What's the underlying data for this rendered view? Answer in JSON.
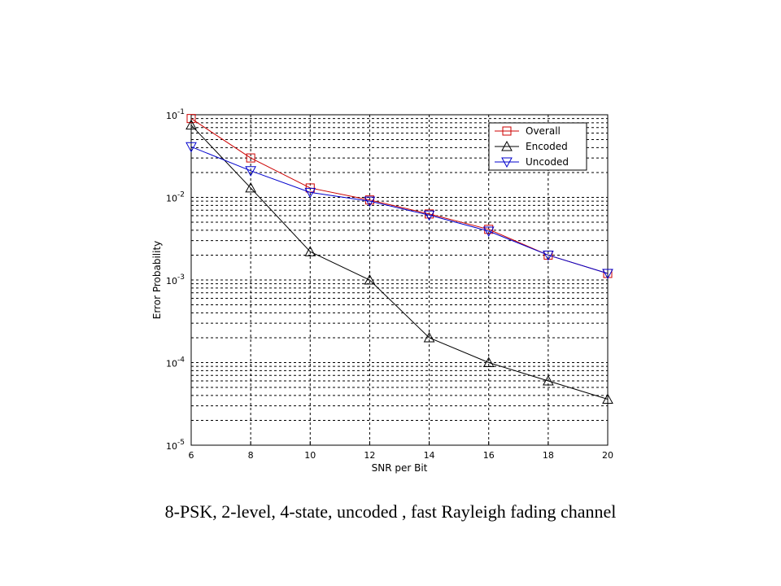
{
  "caption": "8-PSK, 2-level, 4-state, uncoded , fast Rayleigh fading channel",
  "chart_data": {
    "type": "line",
    "title": "",
    "xlabel": "SNR per Bit",
    "ylabel": "Error Probability",
    "x": [
      6,
      8,
      10,
      12,
      14,
      16,
      18,
      20
    ],
    "xlim": [
      6,
      20
    ],
    "xticks": [
      6,
      8,
      10,
      12,
      14,
      16,
      18,
      20
    ],
    "ylim": [
      1e-05,
      0.1
    ],
    "yscale": "log",
    "yticks": [
      {
        "value": 1e-05,
        "base": "10",
        "exp": "-5"
      },
      {
        "value": 0.0001,
        "base": "10",
        "exp": "-4"
      },
      {
        "value": 0.001,
        "base": "10",
        "exp": "-3"
      },
      {
        "value": 0.01,
        "base": "10",
        "exp": "-2"
      },
      {
        "value": 0.1,
        "base": "10",
        "exp": "-1"
      }
    ],
    "grid": true,
    "legend_position": "top-right",
    "series": [
      {
        "name": "Overall",
        "marker": "square",
        "color": "#cc0000",
        "values": [
          0.09,
          0.03,
          0.013,
          0.0093,
          0.0063,
          0.0041,
          0.002,
          0.0012
        ]
      },
      {
        "name": "Encoded",
        "marker": "triangle-up",
        "color": "#000000",
        "values": [
          0.075,
          0.013,
          0.0022,
          0.001,
          0.0002,
          0.0001,
          6e-05,
          3.6e-05
        ]
      },
      {
        "name": "Uncoded",
        "marker": "triangle-down",
        "color": "#0000cc",
        "values": [
          0.041,
          0.021,
          0.0115,
          0.009,
          0.0061,
          0.0039,
          0.002,
          0.0012
        ]
      }
    ]
  }
}
